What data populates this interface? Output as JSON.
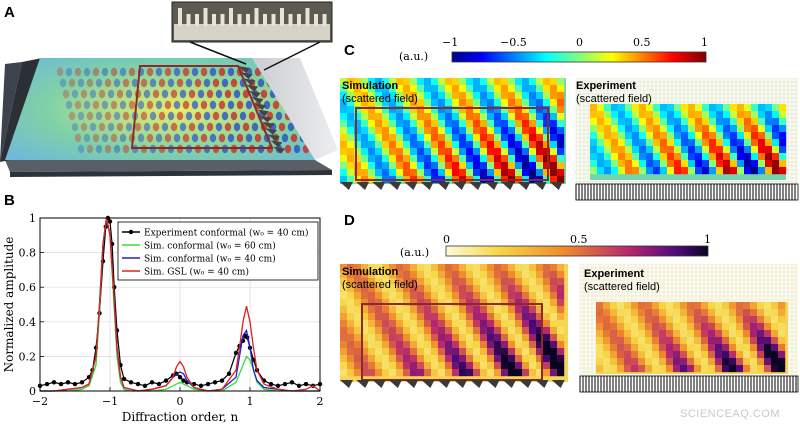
{
  "panels": {
    "A": "A",
    "B": "B",
    "C": "C",
    "D": "D"
  },
  "panelC": {
    "colorbar_unit": "(a.u.)",
    "colorbar_ticks": [
      "−1",
      "−0.5",
      "0",
      "0.5",
      "1"
    ],
    "sim_title": "Simulation",
    "sim_sub": "(scattered field)",
    "exp_title": "Experiment",
    "exp_sub": "(scattered field)"
  },
  "panelD": {
    "colorbar_unit": "(a.u.)",
    "colorbar_ticks": [
      "0",
      "0.5",
      "1"
    ],
    "sim_title": "Simulation",
    "sim_sub": "(scattered field)",
    "exp_title": "Experiment",
    "exp_sub": "(scattered field)"
  },
  "chart_data": {
    "type": "line",
    "xlabel": "Diffraction order, n",
    "ylabel": "Normalized amplitude",
    "xlim": [
      -2,
      2
    ],
    "ylim": [
      0,
      1
    ],
    "xticks": [
      "−2",
      "−1",
      "0",
      "1",
      "2"
    ],
    "yticks": [
      "0",
      "0.2",
      "0.4",
      "0.6",
      "0.8",
      "1"
    ],
    "grid": true,
    "legend_position": "top-right",
    "series": [
      {
        "name": "Experiment conformal (w₀ = 40 cm)",
        "color": "#000000",
        "style": "dots",
        "x": [
          -2.0,
          -1.9,
          -1.8,
          -1.7,
          -1.6,
          -1.5,
          -1.4,
          -1.3,
          -1.25,
          -1.2,
          -1.15,
          -1.1,
          -1.06,
          -1.03,
          -1.0,
          -0.97,
          -0.94,
          -0.9,
          -0.85,
          -0.8,
          -0.7,
          -0.6,
          -0.5,
          -0.4,
          -0.3,
          -0.2,
          -0.1,
          -0.05,
          0.0,
          0.05,
          0.1,
          0.2,
          0.3,
          0.4,
          0.5,
          0.6,
          0.7,
          0.8,
          0.85,
          0.9,
          0.93,
          0.96,
          1.0,
          1.05,
          1.1,
          1.2,
          1.3,
          1.4,
          1.5,
          1.6,
          1.7,
          1.8,
          1.9,
          2.0
        ],
        "y": [
          0.03,
          0.04,
          0.05,
          0.04,
          0.05,
          0.04,
          0.05,
          0.08,
          0.12,
          0.25,
          0.45,
          0.75,
          0.95,
          1.0,
          0.98,
          0.85,
          0.6,
          0.35,
          0.15,
          0.07,
          0.05,
          0.04,
          0.03,
          0.05,
          0.04,
          0.06,
          0.09,
          0.1,
          0.08,
          0.06,
          0.05,
          0.04,
          0.03,
          0.04,
          0.05,
          0.06,
          0.1,
          0.22,
          0.26,
          0.29,
          0.32,
          0.31,
          0.25,
          0.18,
          0.12,
          0.06,
          0.04,
          0.03,
          0.04,
          0.05,
          0.03,
          0.04,
          0.03,
          0.04
        ]
      },
      {
        "name": "Sim. conformal (w₀ = 60 cm)",
        "color": "#33dd33",
        "style": "line",
        "x": [
          -2.0,
          -1.8,
          -1.6,
          -1.4,
          -1.3,
          -1.2,
          -1.15,
          -1.1,
          -1.05,
          -1.0,
          -0.95,
          -0.9,
          -0.85,
          -0.8,
          -0.7,
          -0.6,
          -0.4,
          -0.2,
          -0.1,
          0.0,
          0.1,
          0.2,
          0.4,
          0.6,
          0.8,
          0.9,
          0.95,
          1.0,
          1.05,
          1.1,
          1.2,
          1.4,
          1.6,
          1.8,
          2.0
        ],
        "y": [
          0.0,
          0.0,
          0.0,
          0.01,
          0.03,
          0.15,
          0.45,
          0.85,
          1.0,
          0.9,
          0.55,
          0.2,
          0.05,
          0.01,
          0.0,
          0.0,
          0.0,
          0.01,
          0.03,
          0.05,
          0.03,
          0.01,
          0.0,
          0.0,
          0.05,
          0.15,
          0.2,
          0.18,
          0.12,
          0.05,
          0.01,
          0.0,
          0.0,
          0.0,
          0.0
        ]
      },
      {
        "name": "Sim. conformal (w₀ = 40 cm)",
        "color": "#2222cc",
        "style": "line",
        "x": [
          -2.0,
          -1.8,
          -1.6,
          -1.4,
          -1.3,
          -1.2,
          -1.15,
          -1.1,
          -1.05,
          -1.0,
          -0.95,
          -0.9,
          -0.85,
          -0.8,
          -0.7,
          -0.6,
          -0.4,
          -0.2,
          -0.1,
          0.0,
          0.05,
          0.1,
          0.2,
          0.4,
          0.6,
          0.8,
          0.85,
          0.9,
          0.95,
          1.0,
          1.05,
          1.1,
          1.2,
          1.4,
          1.6,
          1.8,
          2.0
        ],
        "y": [
          0.0,
          0.0,
          0.01,
          0.02,
          0.04,
          0.2,
          0.5,
          0.85,
          1.0,
          0.9,
          0.6,
          0.25,
          0.08,
          0.02,
          0.01,
          0.0,
          0.01,
          0.03,
          0.08,
          0.11,
          0.1,
          0.06,
          0.02,
          0.0,
          0.01,
          0.08,
          0.2,
          0.32,
          0.35,
          0.25,
          0.12,
          0.06,
          0.02,
          0.01,
          0.0,
          0.0,
          0.0
        ]
      },
      {
        "name": "Sim. GSL (w₀ = 40 cm)",
        "color": "#dd2222",
        "style": "line",
        "x": [
          -2.0,
          -1.8,
          -1.6,
          -1.4,
          -1.3,
          -1.2,
          -1.15,
          -1.1,
          -1.05,
          -1.0,
          -0.95,
          -0.9,
          -0.85,
          -0.8,
          -0.7,
          -0.6,
          -0.4,
          -0.2,
          -0.1,
          -0.05,
          0.0,
          0.05,
          0.1,
          0.2,
          0.4,
          0.6,
          0.8,
          0.85,
          0.9,
          0.95,
          1.0,
          1.05,
          1.1,
          1.2,
          1.4,
          1.6,
          1.8,
          1.9,
          2.0
        ],
        "y": [
          0.0,
          0.0,
          0.01,
          0.02,
          0.04,
          0.2,
          0.5,
          0.85,
          1.0,
          0.9,
          0.6,
          0.25,
          0.08,
          0.02,
          0.01,
          0.0,
          0.01,
          0.03,
          0.08,
          0.14,
          0.17,
          0.14,
          0.08,
          0.02,
          0.0,
          0.01,
          0.12,
          0.25,
          0.4,
          0.49,
          0.4,
          0.25,
          0.12,
          0.04,
          0.01,
          0.0,
          0.01,
          0.03,
          0.0
        ]
      }
    ]
  },
  "colors": {
    "frame": "#8b2a2a",
    "substrate": "#3a3a3a"
  },
  "watermark": "SCIENCEAQ.COM"
}
